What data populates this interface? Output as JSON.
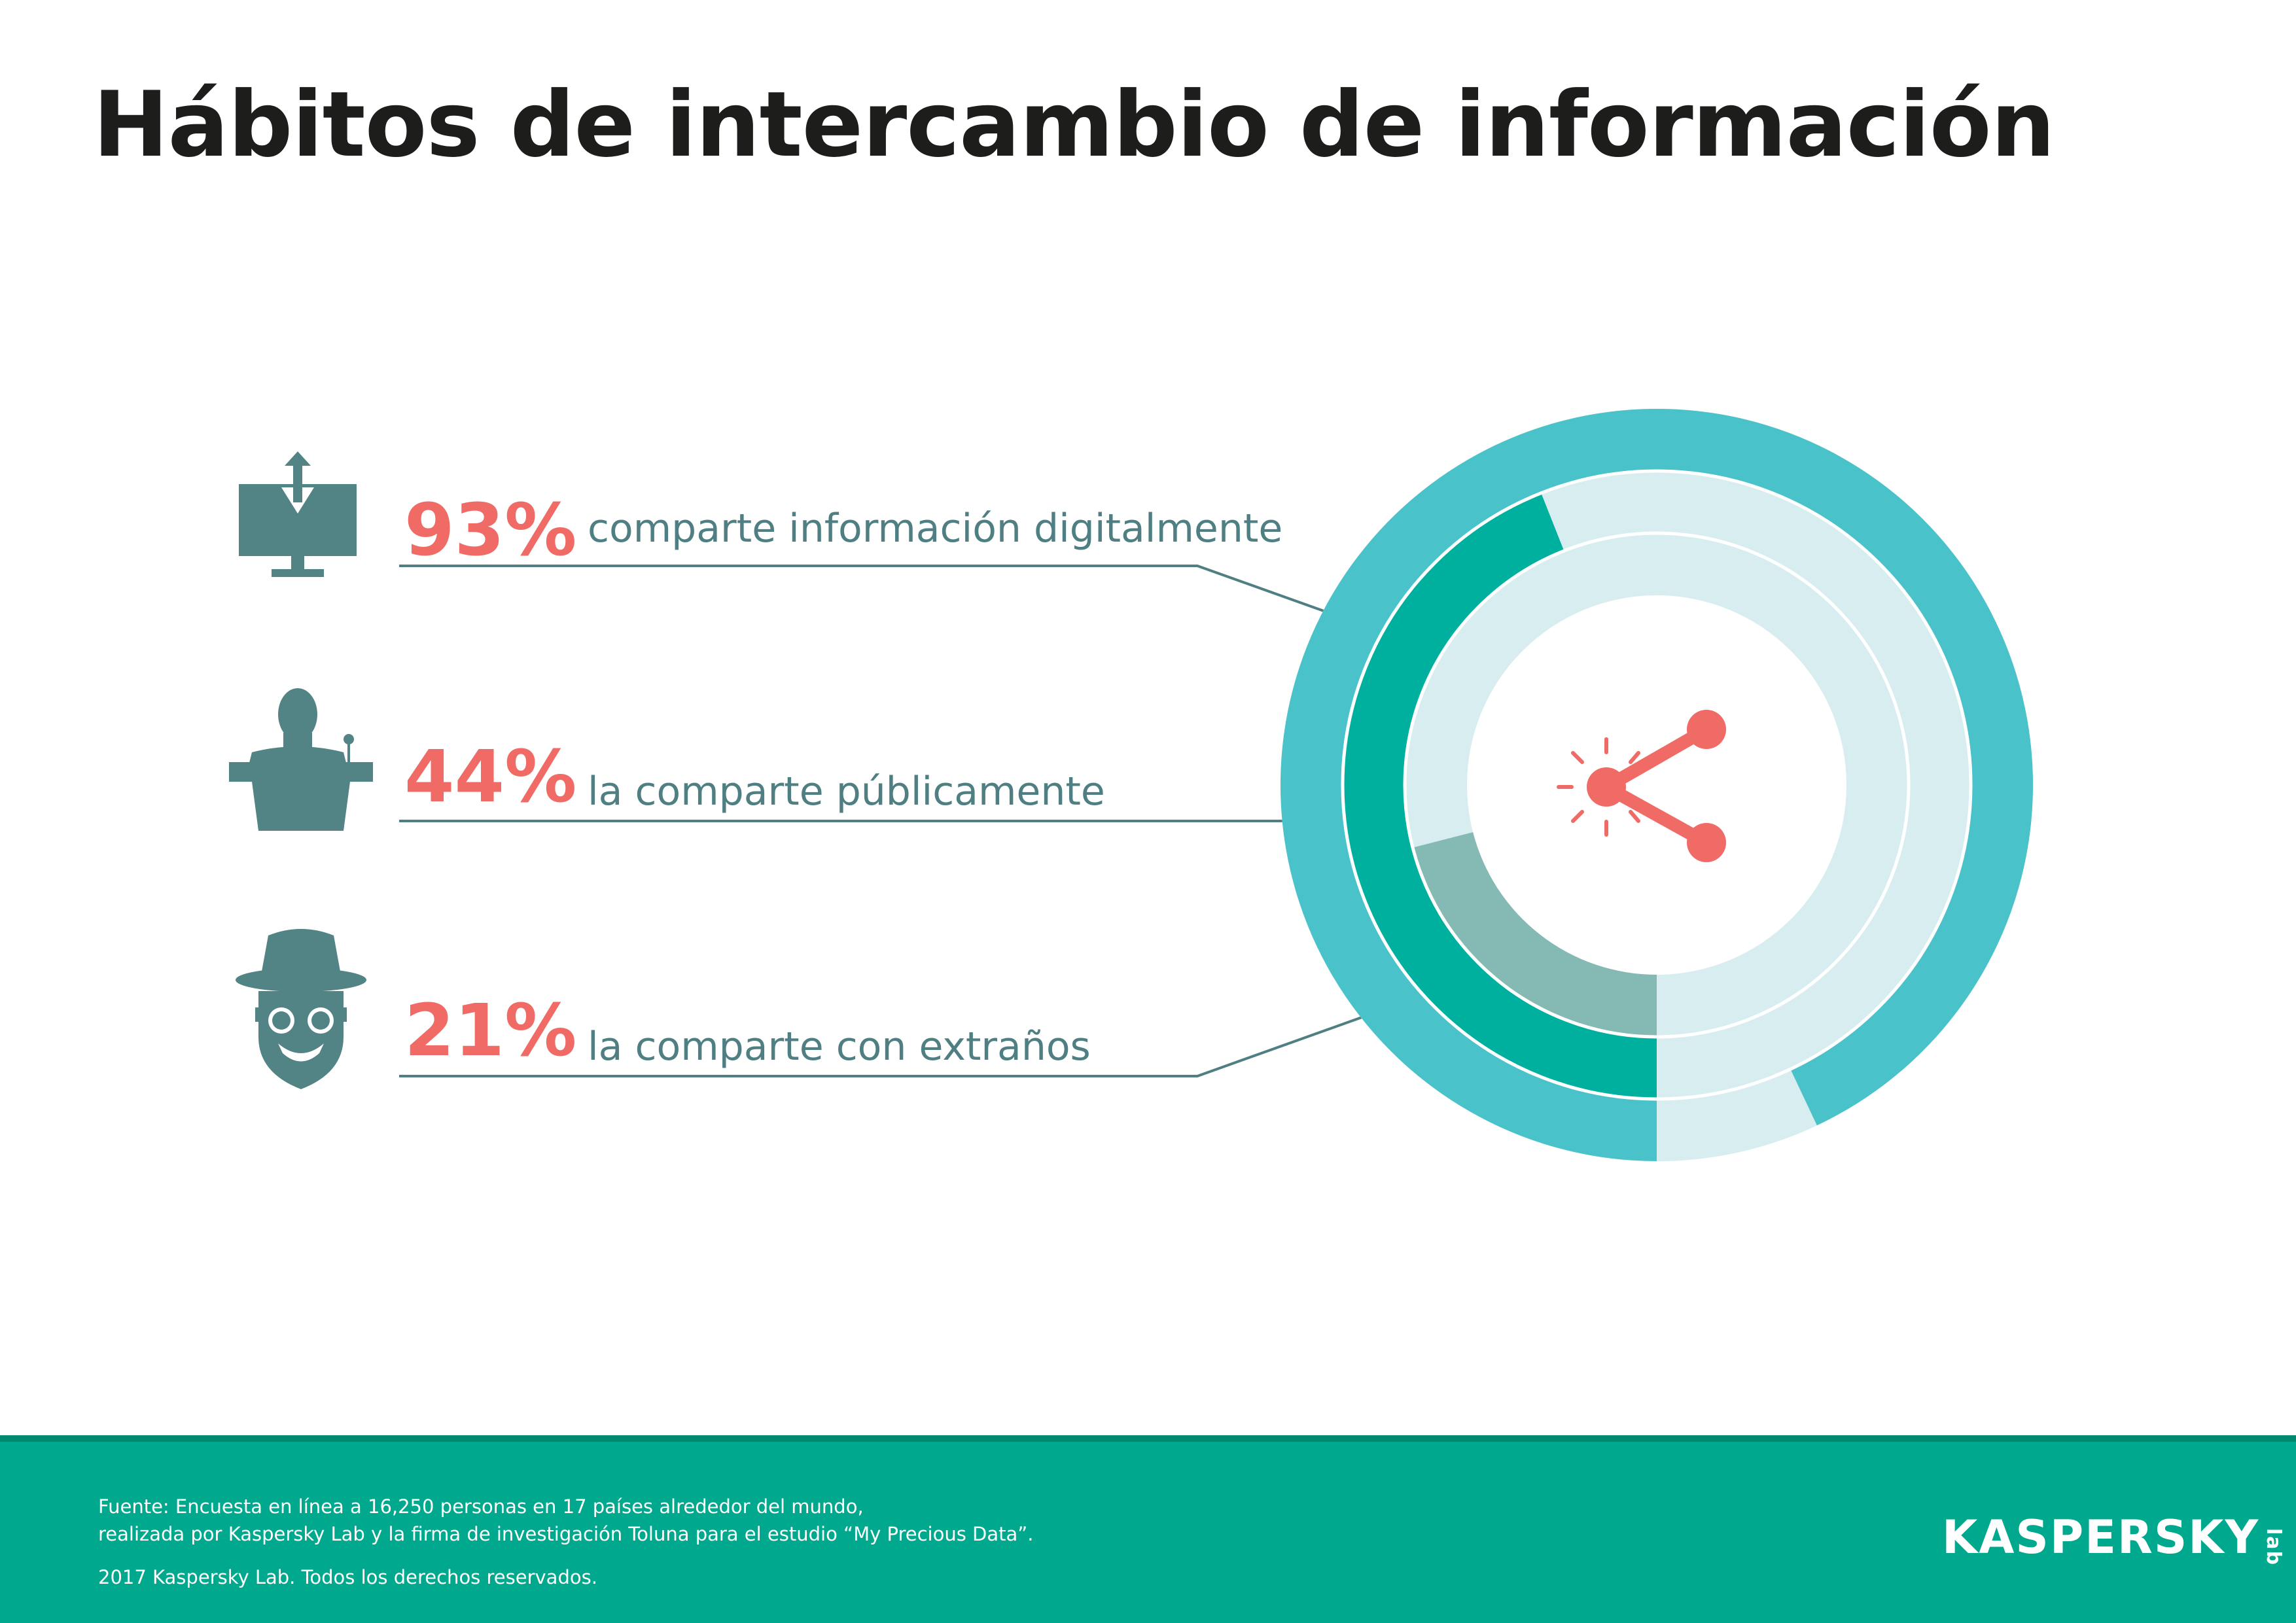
{
  "title": "Hábitos de intercambio de información",
  "colors": {
    "outer_ring": "#4ac2c9",
    "middle_ring": "#00b09e",
    "inner_ring": "#84b9b4",
    "track": "#d8edf0",
    "accent": "#f06b66",
    "label": "#4f7f82",
    "icon": "#528385",
    "footer": "#00a88e"
  },
  "icons": [
    "monitor-upload-icon",
    "speaker-podium-icon",
    "spy-incognito-icon",
    "share-icon"
  ],
  "chart_data": {
    "type": "radial-bar",
    "title": "",
    "unit": "%",
    "max": 100,
    "series": [
      {
        "value": 93,
        "value_label": "93%",
        "label": "comparte información digitalmente"
      },
      {
        "value": 44,
        "value_label": "44%",
        "label": "la comparte públicamente"
      },
      {
        "value": 21,
        "value_label": "21%",
        "label": "la comparte con extraños"
      }
    ]
  },
  "footer": {
    "source_line1": "Fuente: Encuesta en línea  a 16,250 personas en 17 países alrededor del mundo,",
    "source_line2": "realizada por Kaspersky Lab y la firma de investigación Toluna para el estudio “My Precious Data”.",
    "copyright": "2017 Kaspersky Lab. Todos los derechos reservados.",
    "logo_main": "KASPERSKY",
    "logo_sub": "lab"
  }
}
